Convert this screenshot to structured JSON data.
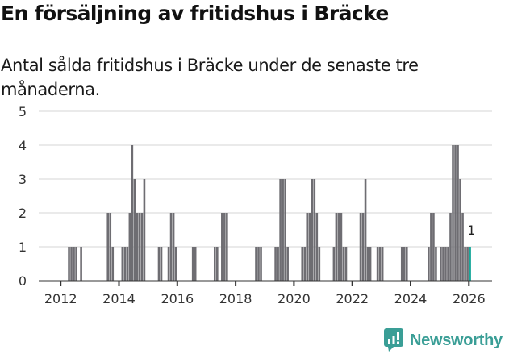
{
  "header": {
    "title": "En försäljning av fritidshus i Bräcke",
    "subtitle": "Antal sålda fritidshus i Bräcke under de senaste tre månaderna."
  },
  "branding": {
    "logo_icon": "bar-chart-speech-bubble-icon",
    "logo_text": "Newsworthy",
    "color": "#3a9e96"
  },
  "colors": {
    "bar": "#6e6d72",
    "highlight": "#18a89a",
    "grid": "#e3e3e3",
    "axis": "#333333"
  },
  "chart_data": {
    "type": "bar",
    "title": "En försäljning av fritidshus i Bräcke",
    "subtitle": "Antal sålda fritidshus i Bräcke under de senaste tre månaderna.",
    "xlabel": "",
    "ylabel": "",
    "ylim": [
      0,
      5
    ],
    "yticks": [
      0,
      1,
      2,
      3,
      4,
      5
    ],
    "xticks": [
      "2012",
      "2014",
      "2016",
      "2018",
      "2020",
      "2022",
      "2024",
      "2026"
    ],
    "grid": true,
    "x_start": "2011-08",
    "x_end": "2026-09",
    "highlight_last": true,
    "annotation": {
      "x": "2026-01",
      "text": "1"
    },
    "points": [
      {
        "x": "2012-04",
        "y": 1
      },
      {
        "x": "2012-05",
        "y": 1
      },
      {
        "x": "2012-06",
        "y": 1
      },
      {
        "x": "2012-07",
        "y": 1
      },
      {
        "x": "2012-09",
        "y": 1
      },
      {
        "x": "2013-08",
        "y": 2
      },
      {
        "x": "2013-09",
        "y": 2
      },
      {
        "x": "2013-10",
        "y": 1
      },
      {
        "x": "2014-02",
        "y": 1
      },
      {
        "x": "2014-03",
        "y": 1
      },
      {
        "x": "2014-04",
        "y": 1
      },
      {
        "x": "2014-05",
        "y": 2
      },
      {
        "x": "2014-06",
        "y": 4
      },
      {
        "x": "2014-07",
        "y": 3
      },
      {
        "x": "2014-08",
        "y": 2
      },
      {
        "x": "2014-09",
        "y": 2
      },
      {
        "x": "2014-10",
        "y": 2
      },
      {
        "x": "2014-11",
        "y": 3
      },
      {
        "x": "2015-05",
        "y": 1
      },
      {
        "x": "2015-06",
        "y": 1
      },
      {
        "x": "2015-09",
        "y": 1
      },
      {
        "x": "2015-10",
        "y": 2
      },
      {
        "x": "2015-11",
        "y": 2
      },
      {
        "x": "2015-12",
        "y": 1
      },
      {
        "x": "2016-07",
        "y": 1
      },
      {
        "x": "2016-08",
        "y": 1
      },
      {
        "x": "2017-04",
        "y": 1
      },
      {
        "x": "2017-05",
        "y": 1
      },
      {
        "x": "2017-07",
        "y": 2
      },
      {
        "x": "2017-08",
        "y": 2
      },
      {
        "x": "2017-09",
        "y": 2
      },
      {
        "x": "2018-09",
        "y": 1
      },
      {
        "x": "2018-10",
        "y": 1
      },
      {
        "x": "2018-11",
        "y": 1
      },
      {
        "x": "2019-05",
        "y": 1
      },
      {
        "x": "2019-06",
        "y": 1
      },
      {
        "x": "2019-07",
        "y": 3
      },
      {
        "x": "2019-08",
        "y": 3
      },
      {
        "x": "2019-09",
        "y": 3
      },
      {
        "x": "2019-10",
        "y": 1
      },
      {
        "x": "2020-04",
        "y": 1
      },
      {
        "x": "2020-05",
        "y": 1
      },
      {
        "x": "2020-06",
        "y": 2
      },
      {
        "x": "2020-07",
        "y": 2
      },
      {
        "x": "2020-08",
        "y": 3
      },
      {
        "x": "2020-09",
        "y": 3
      },
      {
        "x": "2020-10",
        "y": 2
      },
      {
        "x": "2020-11",
        "y": 1
      },
      {
        "x": "2021-05",
        "y": 1
      },
      {
        "x": "2021-06",
        "y": 2
      },
      {
        "x": "2021-07",
        "y": 2
      },
      {
        "x": "2021-08",
        "y": 2
      },
      {
        "x": "2021-09",
        "y": 1
      },
      {
        "x": "2021-10",
        "y": 1
      },
      {
        "x": "2022-04",
        "y": 2
      },
      {
        "x": "2022-05",
        "y": 2
      },
      {
        "x": "2022-06",
        "y": 3
      },
      {
        "x": "2022-07",
        "y": 1
      },
      {
        "x": "2022-08",
        "y": 1
      },
      {
        "x": "2022-11",
        "y": 1
      },
      {
        "x": "2022-12",
        "y": 1
      },
      {
        "x": "2023-01",
        "y": 1
      },
      {
        "x": "2023-09",
        "y": 1
      },
      {
        "x": "2023-10",
        "y": 1
      },
      {
        "x": "2023-11",
        "y": 1
      },
      {
        "x": "2024-08",
        "y": 1
      },
      {
        "x": "2024-09",
        "y": 2
      },
      {
        "x": "2024-10",
        "y": 2
      },
      {
        "x": "2024-11",
        "y": 1
      },
      {
        "x": "2025-01",
        "y": 1
      },
      {
        "x": "2025-02",
        "y": 1
      },
      {
        "x": "2025-03",
        "y": 1
      },
      {
        "x": "2025-04",
        "y": 1
      },
      {
        "x": "2025-05",
        "y": 2
      },
      {
        "x": "2025-06",
        "y": 4
      },
      {
        "x": "2025-07",
        "y": 4
      },
      {
        "x": "2025-08",
        "y": 4
      },
      {
        "x": "2025-09",
        "y": 3
      },
      {
        "x": "2025-10",
        "y": 2
      },
      {
        "x": "2025-11",
        "y": 1
      },
      {
        "x": "2025-12",
        "y": 1
      },
      {
        "x": "2026-01",
        "y": 1
      }
    ]
  }
}
